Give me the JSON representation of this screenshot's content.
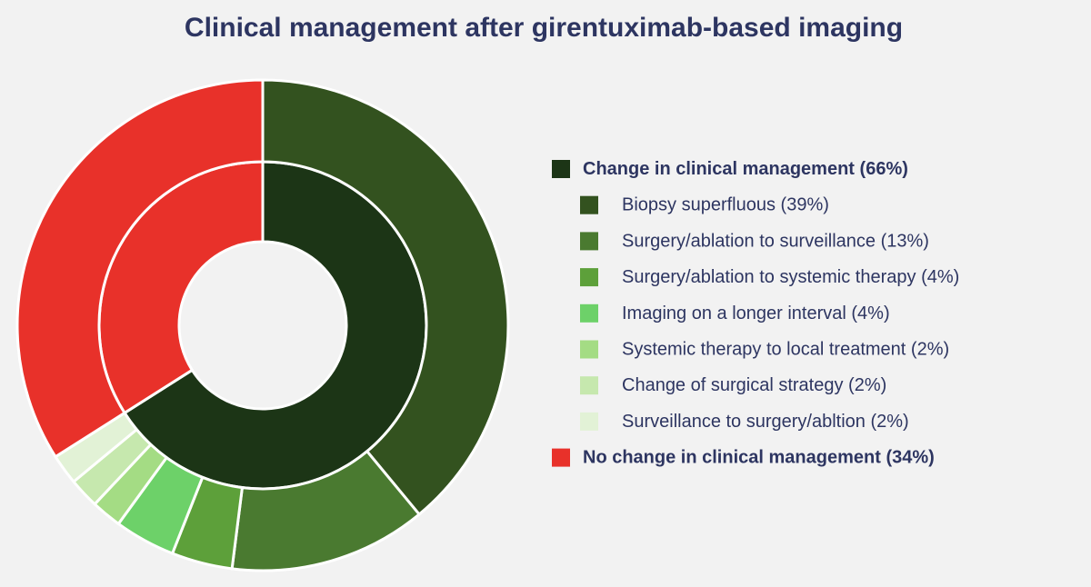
{
  "chart_data": {
    "type": "nested-donut",
    "title": "Clinical management after girentuximab-based imaging",
    "series": [
      {
        "categories": [
          "Change in clinical management",
          "No change in clinical management"
        ],
        "values": [
          66,
          34
        ],
        "value_labels": [
          "(66%)",
          "(34%)"
        ],
        "colors": [
          "#1c3516",
          "#e8312a"
        ]
      },
      {
        "categories": [
          "Biopsy superfluous",
          "Surgery/ablation to surveillance",
          "Surgery/ablation to systemic therapy",
          "Imaging on a longer interval",
          "Systemic therapy to local treatment",
          "Change of surgical strategy",
          "Surveillance to surgery/abltion"
        ],
        "values": [
          39,
          13,
          4,
          4,
          2,
          2,
          2
        ],
        "value_labels": [
          "(39%)",
          "(13%)",
          "(4%)",
          "(4%)",
          "(2%)",
          "(2%)",
          "(2%)"
        ],
        "colors": [
          "#33521f",
          "#4a7a30",
          "#5da03a",
          "#6dd169",
          "#a4dc84",
          "#c6e8ae",
          "#e2f2d6"
        ]
      }
    ]
  }
}
